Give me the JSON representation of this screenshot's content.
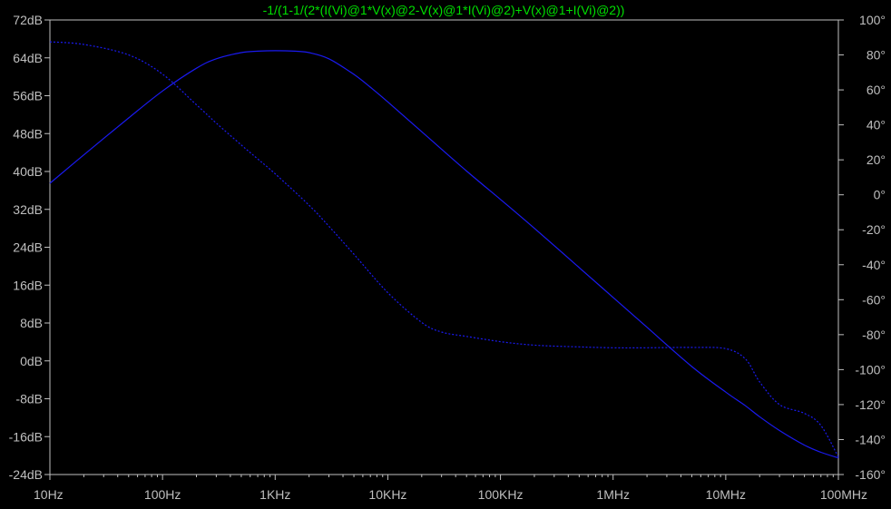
{
  "colors": {
    "background": "#000000",
    "axes": "#bfbfbf",
    "grid": "#7f7f7f",
    "trace": "#1a1af0",
    "title": "#00e000"
  },
  "chart_data": {
    "type": "line",
    "title": "-1/(1-1/(2*(I(Vi)@1*V(x)@2-V(x)@1*I(Vi)@2)+V(x)@1+I(Vi)@2))",
    "x_scale": "log",
    "xlim": [
      10,
      100000000
    ],
    "x_ticks": [
      10,
      100,
      1000,
      10000,
      100000,
      1000000,
      10000000,
      100000000
    ],
    "x_tick_labels": [
      "10Hz",
      "100Hz",
      "1KHz",
      "10KHz",
      "100KHz",
      "1MHz",
      "10MHz",
      "100MHz"
    ],
    "left_axis": {
      "lim": [
        -24,
        72
      ],
      "ticks": [
        72,
        64,
        56,
        48,
        40,
        32,
        24,
        16,
        8,
        0,
        -8,
        -16,
        -24
      ],
      "tick_labels": [
        "72dB",
        "64dB",
        "56dB",
        "48dB",
        "40dB",
        "32dB",
        "24dB",
        "16dB",
        "8dB",
        "0dB",
        "-8dB",
        "-16dB",
        "-24dB"
      ]
    },
    "right_axis": {
      "lim": [
        -160,
        100
      ],
      "ticks": [
        100,
        80,
        60,
        40,
        20,
        0,
        -20,
        -40,
        -60,
        -80,
        -100,
        -120,
        -140,
        -160
      ],
      "tick_labels": [
        "100°",
        "80°",
        "60°",
        "40°",
        "20°",
        "0°",
        "-20°",
        "-40°",
        "-60°",
        "-80°",
        "-100°",
        "-120°",
        "-140°",
        "-160°"
      ]
    },
    "grid": false,
    "series": [
      {
        "axis": "left",
        "style": "solid",
        "x": [
          10,
          20,
          50,
          100,
          200,
          300,
          500,
          700,
          1000,
          1500,
          2000,
          3000,
          5000,
          7000,
          10000,
          20000,
          50000,
          100000,
          200000,
          500000,
          1000000,
          2000000,
          5000000,
          10000000,
          15000000,
          20000000,
          30000000,
          50000000,
          70000000,
          100000000
        ],
        "y": [
          37.5,
          43.5,
          51.3,
          57,
          61.8,
          63.8,
          65.1,
          65.4,
          65.5,
          65.4,
          65.1,
          63.8,
          60.5,
          57.8,
          54.7,
          48.4,
          40.1,
          34.1,
          28,
          19.7,
          13.4,
          7.1,
          -1.2,
          -6.6,
          -9.5,
          -11.8,
          -14.7,
          -17.8,
          -19.3,
          -20.5
        ]
      },
      {
        "axis": "right",
        "style": "dashed",
        "x": [
          10,
          20,
          50,
          100,
          200,
          300,
          500,
          700,
          1000,
          2000,
          3000,
          5000,
          10000,
          20000,
          30000,
          50000,
          100000,
          200000,
          500000,
          1000000,
          2000000,
          5000000,
          10000000,
          15000000,
          20000000,
          30000000,
          50000000,
          70000000,
          100000000
        ],
        "y": [
          87.5,
          86,
          80,
          69,
          51.5,
          41,
          28.5,
          20.5,
          12,
          -6,
          -18,
          -34,
          -56,
          -73,
          -78.5,
          -81,
          -84,
          -86,
          -87,
          -87.5,
          -87.5,
          -87.3,
          -88,
          -94,
          -107,
          -120,
          -125,
          -132,
          -150
        ]
      }
    ]
  }
}
